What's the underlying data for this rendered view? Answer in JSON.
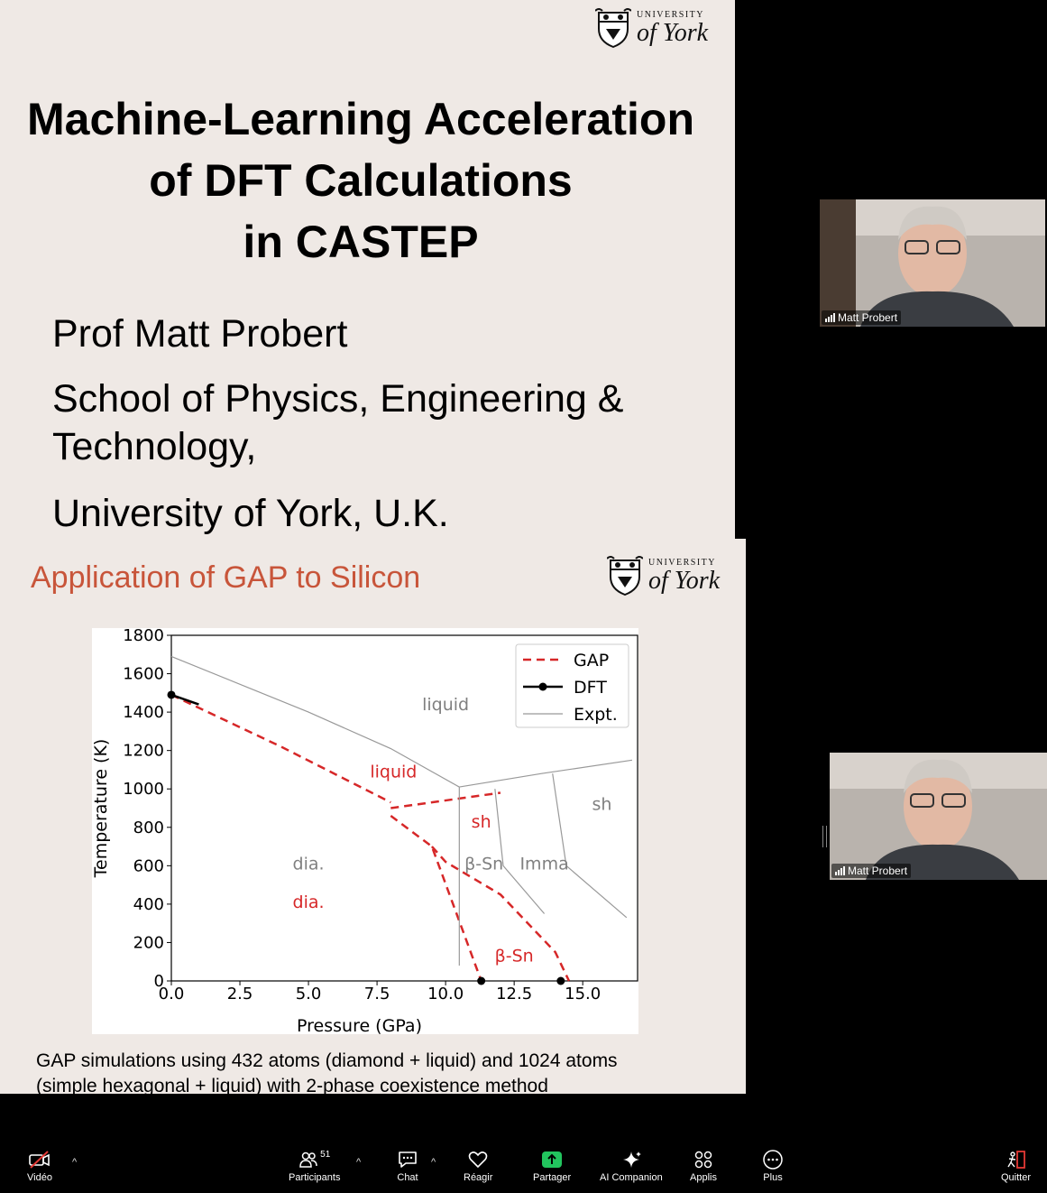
{
  "slide1": {
    "logo": {
      "university": "UNIVERSITY",
      "york": "of York"
    },
    "title_lines": [
      "Machine-Learning Acceleration",
      "of DFT Calculations",
      "in CASTEP"
    ],
    "author": "Prof Matt Probert",
    "department_line1": "School of Physics, Engineering &",
    "department_line2": "Technology,",
    "institution": "University of York, U.K."
  },
  "slide2": {
    "title": "Application of GAP to Silicon",
    "logo": {
      "university": "UNIVERSITY",
      "york": "of York"
    },
    "caption_line1": "GAP simulations using 432 atoms (diamond + liquid) and 1024 atoms",
    "caption_line2": "(simple hexagonal + liquid) with 2-phase coexistence method"
  },
  "chart_data": {
    "type": "line",
    "xlabel": "Pressure (GPa)",
    "ylabel": "Temperature (K)",
    "xlim": [
      0,
      17
    ],
    "ylim": [
      0,
      1800
    ],
    "xticks": [
      "0.0",
      "2.5",
      "5.0",
      "7.5",
      "10.0",
      "12.5",
      "15.0"
    ],
    "yticks": [
      "0",
      "200",
      "400",
      "600",
      "800",
      "1000",
      "1200",
      "1400",
      "1600",
      "1800"
    ],
    "legend": {
      "placement": "top-right",
      "entries": [
        "GAP",
        "DFT",
        "Expt."
      ]
    },
    "series": [
      {
        "name": "GAP",
        "color": "#d62728",
        "style": "dashed",
        "segments": [
          [
            [
              0,
              1490
            ],
            [
              4,
              1220
            ],
            [
              8,
              930
            ]
          ],
          [
            [
              8,
              900
            ],
            [
              12,
              980
            ]
          ],
          [
            [
              8,
              860
            ],
            [
              9.5,
              700
            ],
            [
              11.3,
              0
            ]
          ],
          [
            [
              9.5,
              700
            ],
            [
              10,
              620
            ],
            [
              12,
              450
            ],
            [
              14,
              150
            ],
            [
              14.5,
              0
            ]
          ]
        ]
      },
      {
        "name": "DFT",
        "color": "#000000",
        "style": "solid",
        "segments": [
          [
            [
              0,
              1490
            ],
            [
              1,
              1440
            ]
          ]
        ],
        "points": [
          [
            0,
            1490
          ],
          [
            11.3,
            0
          ],
          [
            14.2,
            0
          ]
        ]
      },
      {
        "name": "Expt.",
        "color": "#999999",
        "style": "solid",
        "segments": [
          [
            [
              0,
              1690
            ],
            [
              5,
              1400
            ],
            [
              8,
              1210
            ],
            [
              10.5,
              1010
            ]
          ],
          [
            [
              10.5,
              1010
            ],
            [
              13.5,
              1080
            ],
            [
              16.8,
              1150
            ]
          ],
          [
            [
              10.5,
              1010
            ],
            [
              10.5,
              80
            ]
          ],
          [
            [
              11.8,
              1000
            ],
            [
              12.1,
              600
            ],
            [
              13.6,
              350
            ]
          ],
          [
            [
              13.9,
              1080
            ],
            [
              14.4,
              600
            ],
            [
              16.6,
              330
            ]
          ]
        ]
      }
    ],
    "annotations": [
      {
        "text": "liquid",
        "x": 10,
        "y": 1410,
        "color": "#808080"
      },
      {
        "text": "liquid",
        "x": 8.1,
        "y": 1060,
        "color": "#d62728"
      },
      {
        "text": "sh",
        "x": 11.3,
        "y": 800,
        "color": "#d62728"
      },
      {
        "text": "sh",
        "x": 15.7,
        "y": 890,
        "color": "#808080"
      },
      {
        "text": "dia.",
        "x": 5,
        "y": 580,
        "color": "#808080"
      },
      {
        "text": "dia.",
        "x": 5,
        "y": 380,
        "color": "#d62728"
      },
      {
        "text": "β-Sn",
        "x": 11.4,
        "y": 580,
        "color": "#808080"
      },
      {
        "text": "Imma",
        "x": 13.6,
        "y": 580,
        "color": "#808080"
      },
      {
        "text": "β-Sn",
        "x": 12.5,
        "y": 100,
        "color": "#d62728"
      }
    ]
  },
  "videos": [
    {
      "name": "Matt Probert"
    },
    {
      "name": "Matt Probert"
    }
  ],
  "toolbar": {
    "video": "Vidéo",
    "participants": "Participants",
    "participants_count": "51",
    "chat": "Chat",
    "react": "Réagir",
    "share": "Partager",
    "ai": "AI Companion",
    "apps": "Applis",
    "more": "Plus",
    "leave": "Quitter",
    "share_color": "#22c55e"
  }
}
